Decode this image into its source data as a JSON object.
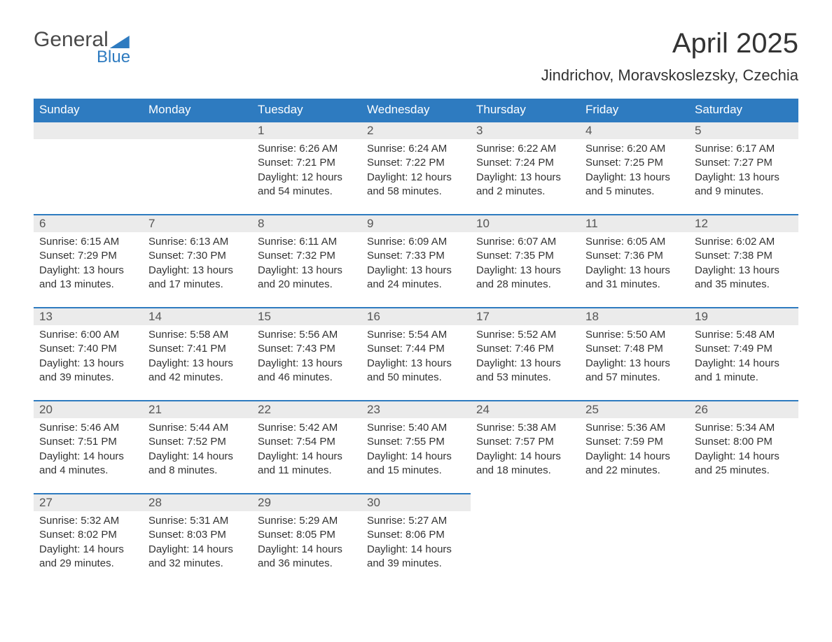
{
  "logo": {
    "general": "General",
    "blue": "Blue"
  },
  "title": "April 2025",
  "location": "Jindrichov, Moravskoslezsky, Czechia",
  "day_headers": [
    "Sunday",
    "Monday",
    "Tuesday",
    "Wednesday",
    "Thursday",
    "Friday",
    "Saturday"
  ],
  "colors": {
    "header_bg": "#2e7bc0",
    "header_fg": "#ffffff",
    "daynum_bg": "#ebebeb",
    "border": "#2e7bc0",
    "text": "#333333"
  },
  "weeks": [
    [
      {
        "day": "",
        "lines": []
      },
      {
        "day": "",
        "lines": []
      },
      {
        "day": "1",
        "lines": [
          "Sunrise: 6:26 AM",
          "Sunset: 7:21 PM",
          "Daylight: 12 hours and 54 minutes."
        ]
      },
      {
        "day": "2",
        "lines": [
          "Sunrise: 6:24 AM",
          "Sunset: 7:22 PM",
          "Daylight: 12 hours and 58 minutes."
        ]
      },
      {
        "day": "3",
        "lines": [
          "Sunrise: 6:22 AM",
          "Sunset: 7:24 PM",
          "Daylight: 13 hours and 2 minutes."
        ]
      },
      {
        "day": "4",
        "lines": [
          "Sunrise: 6:20 AM",
          "Sunset: 7:25 PM",
          "Daylight: 13 hours and 5 minutes."
        ]
      },
      {
        "day": "5",
        "lines": [
          "Sunrise: 6:17 AM",
          "Sunset: 7:27 PM",
          "Daylight: 13 hours and 9 minutes."
        ]
      }
    ],
    [
      {
        "day": "6",
        "lines": [
          "Sunrise: 6:15 AM",
          "Sunset: 7:29 PM",
          "Daylight: 13 hours and 13 minutes."
        ]
      },
      {
        "day": "7",
        "lines": [
          "Sunrise: 6:13 AM",
          "Sunset: 7:30 PM",
          "Daylight: 13 hours and 17 minutes."
        ]
      },
      {
        "day": "8",
        "lines": [
          "Sunrise: 6:11 AM",
          "Sunset: 7:32 PM",
          "Daylight: 13 hours and 20 minutes."
        ]
      },
      {
        "day": "9",
        "lines": [
          "Sunrise: 6:09 AM",
          "Sunset: 7:33 PM",
          "Daylight: 13 hours and 24 minutes."
        ]
      },
      {
        "day": "10",
        "lines": [
          "Sunrise: 6:07 AM",
          "Sunset: 7:35 PM",
          "Daylight: 13 hours and 28 minutes."
        ]
      },
      {
        "day": "11",
        "lines": [
          "Sunrise: 6:05 AM",
          "Sunset: 7:36 PM",
          "Daylight: 13 hours and 31 minutes."
        ]
      },
      {
        "day": "12",
        "lines": [
          "Sunrise: 6:02 AM",
          "Sunset: 7:38 PM",
          "Daylight: 13 hours and 35 minutes."
        ]
      }
    ],
    [
      {
        "day": "13",
        "lines": [
          "Sunrise: 6:00 AM",
          "Sunset: 7:40 PM",
          "Daylight: 13 hours and 39 minutes."
        ]
      },
      {
        "day": "14",
        "lines": [
          "Sunrise: 5:58 AM",
          "Sunset: 7:41 PM",
          "Daylight: 13 hours and 42 minutes."
        ]
      },
      {
        "day": "15",
        "lines": [
          "Sunrise: 5:56 AM",
          "Sunset: 7:43 PM",
          "Daylight: 13 hours and 46 minutes."
        ]
      },
      {
        "day": "16",
        "lines": [
          "Sunrise: 5:54 AM",
          "Sunset: 7:44 PM",
          "Daylight: 13 hours and 50 minutes."
        ]
      },
      {
        "day": "17",
        "lines": [
          "Sunrise: 5:52 AM",
          "Sunset: 7:46 PM",
          "Daylight: 13 hours and 53 minutes."
        ]
      },
      {
        "day": "18",
        "lines": [
          "Sunrise: 5:50 AM",
          "Sunset: 7:48 PM",
          "Daylight: 13 hours and 57 minutes."
        ]
      },
      {
        "day": "19",
        "lines": [
          "Sunrise: 5:48 AM",
          "Sunset: 7:49 PM",
          "Daylight: 14 hours and 1 minute."
        ]
      }
    ],
    [
      {
        "day": "20",
        "lines": [
          "Sunrise: 5:46 AM",
          "Sunset: 7:51 PM",
          "Daylight: 14 hours and 4 minutes."
        ]
      },
      {
        "day": "21",
        "lines": [
          "Sunrise: 5:44 AM",
          "Sunset: 7:52 PM",
          "Daylight: 14 hours and 8 minutes."
        ]
      },
      {
        "day": "22",
        "lines": [
          "Sunrise: 5:42 AM",
          "Sunset: 7:54 PM",
          "Daylight: 14 hours and 11 minutes."
        ]
      },
      {
        "day": "23",
        "lines": [
          "Sunrise: 5:40 AM",
          "Sunset: 7:55 PM",
          "Daylight: 14 hours and 15 minutes."
        ]
      },
      {
        "day": "24",
        "lines": [
          "Sunrise: 5:38 AM",
          "Sunset: 7:57 PM",
          "Daylight: 14 hours and 18 minutes."
        ]
      },
      {
        "day": "25",
        "lines": [
          "Sunrise: 5:36 AM",
          "Sunset: 7:59 PM",
          "Daylight: 14 hours and 22 minutes."
        ]
      },
      {
        "day": "26",
        "lines": [
          "Sunrise: 5:34 AM",
          "Sunset: 8:00 PM",
          "Daylight: 14 hours and 25 minutes."
        ]
      }
    ],
    [
      {
        "day": "27",
        "lines": [
          "Sunrise: 5:32 AM",
          "Sunset: 8:02 PM",
          "Daylight: 14 hours and 29 minutes."
        ]
      },
      {
        "day": "28",
        "lines": [
          "Sunrise: 5:31 AM",
          "Sunset: 8:03 PM",
          "Daylight: 14 hours and 32 minutes."
        ]
      },
      {
        "day": "29",
        "lines": [
          "Sunrise: 5:29 AM",
          "Sunset: 8:05 PM",
          "Daylight: 14 hours and 36 minutes."
        ]
      },
      {
        "day": "30",
        "lines": [
          "Sunrise: 5:27 AM",
          "Sunset: 8:06 PM",
          "Daylight: 14 hours and 39 minutes."
        ]
      },
      {
        "day": "",
        "lines": []
      },
      {
        "day": "",
        "lines": []
      },
      {
        "day": "",
        "lines": []
      }
    ]
  ]
}
